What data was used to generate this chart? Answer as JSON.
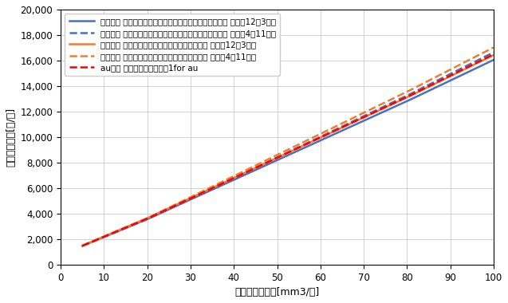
{
  "title": "",
  "xlabel": "月間ガス使用量[mm3/月]",
  "ylabel": "推定ガス料金[円/月]",
  "xlim": [
    0,
    100
  ],
  "ylim": [
    0,
    20000
  ],
  "xticks": [
    0,
    10,
    20,
    30,
    40,
    50,
    60,
    70,
    80,
    90,
    100
  ],
  "yticks": [
    0,
    2000,
    4000,
    6000,
    8000,
    10000,
    12000,
    14000,
    16000,
    18000,
    20000
  ],
  "series": [
    {
      "label": "東邦ガス あったかトクトク料金（エコジョーズプラン） 冬季（12～3月）",
      "color": "#4472C4",
      "linestyle": "solid",
      "linewidth": 1.8,
      "base_charge": 759.54,
      "tiers": [
        {
          "up_to": 20,
          "rate": 139.87
        },
        {
          "up_to": 80,
          "rate": 154.22
        },
        {
          "up_to": 200,
          "rate": 162.08
        }
      ]
    },
    {
      "label": "東邦ガス あったかトクトク料金（エコジョーズプラン） 夏季（4～11月）",
      "color": "#4472C4",
      "linestyle": "dashed",
      "linewidth": 1.8,
      "base_charge": 759.54,
      "tiers": [
        {
          "up_to": 20,
          "rate": 139.87
        },
        {
          "up_to": 80,
          "rate": 161.5
        },
        {
          "up_to": 200,
          "rate": 169.97
        }
      ]
    },
    {
      "label": "東邦ガス あったかトクトク料金（標準プラン） 冬季（12～3月）",
      "color": "#ED7D31",
      "linestyle": "solid",
      "linewidth": 1.8,
      "base_charge": 759.54,
      "tiers": [
        {
          "up_to": 20,
          "rate": 143.56
        },
        {
          "up_to": 80,
          "rate": 157.97
        },
        {
          "up_to": 200,
          "rate": 165.98
        }
      ]
    },
    {
      "label": "東邦ガス あったかトクトク料金（標準プラン） 夏季（4～11月）",
      "color": "#ED7D31",
      "linestyle": "dashed",
      "linewidth": 1.8,
      "base_charge": 759.54,
      "tiers": [
        {
          "up_to": 20,
          "rate": 143.56
        },
        {
          "up_to": 80,
          "rate": 165.3
        },
        {
          "up_to": 200,
          "rate": 173.87
        }
      ]
    },
    {
      "label": "auガス カテエネガスプラン1for au",
      "color": "#FF0000",
      "linestyle": "dashed",
      "linewidth": 1.8,
      "base_charge": 759.54,
      "tiers": [
        {
          "up_to": 20,
          "rate": 141.93
        },
        {
          "up_to": 80,
          "rate": 159.05
        },
        {
          "up_to": 200,
          "rate": 167.19
        }
      ]
    }
  ],
  "legend_fontsize": 7.5,
  "axis_fontsize": 9,
  "tick_fontsize": 8.5,
  "background_color": "#FFFFFF",
  "grid_color": "#BFBFBF"
}
